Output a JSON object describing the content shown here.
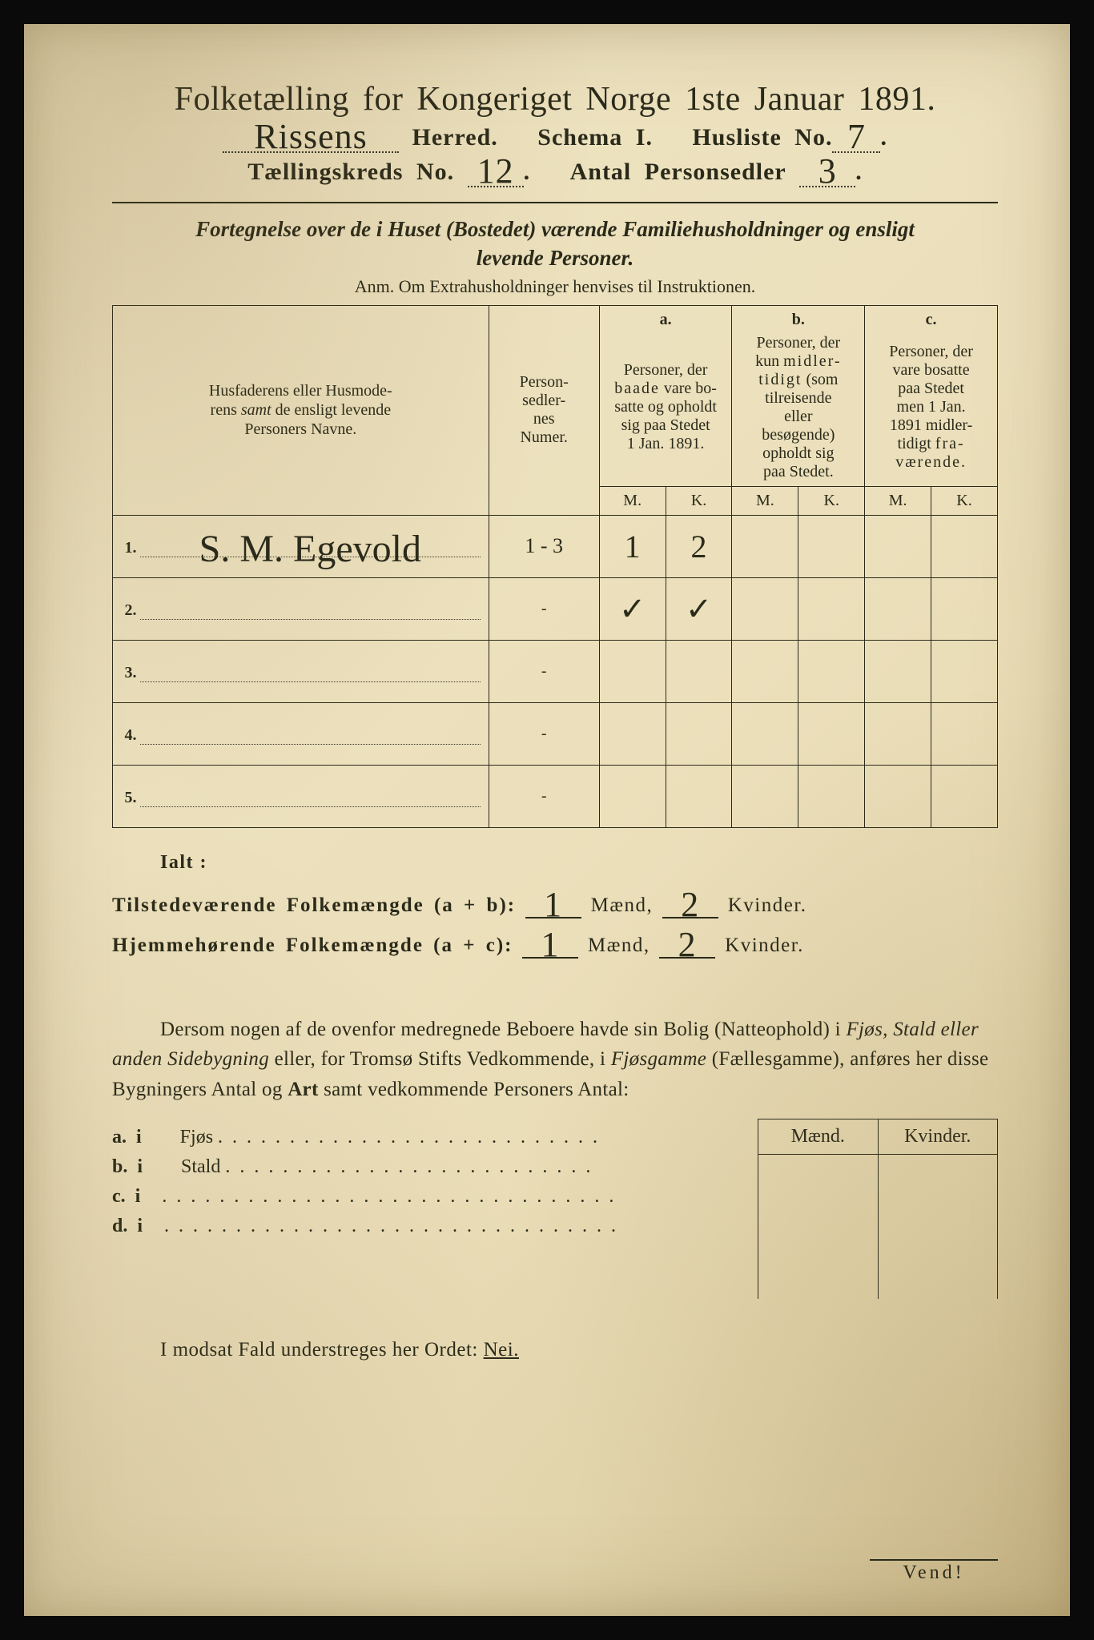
{
  "title": "Folketælling for Kongeriget Norge 1ste Januar 1891.",
  "header": {
    "herred_value": "Rissens",
    "herred_label": "Herred.",
    "schema_label": "Schema I.",
    "husliste_label": "Husliste No.",
    "husliste_value": "7",
    "kreds_label": "Tællingskreds No.",
    "kreds_value": "12",
    "antal_label": "Antal Personsedler",
    "antal_value": "3"
  },
  "subheading_line1": "Fortegnelse over de i Huset (Bostedet) værende Familiehusholdninger og ensligt",
  "subheading_line2": "levende Personer.",
  "anm": "Anm.  Om Extrahusholdninger henvises til Instruktionen.",
  "table": {
    "col_name": "Husfaderens eller Husmoderens samt de ensligt levende Personers Navne.",
    "col_num": "Person-\nsedler-\nnes\nNumer.",
    "col_a_top": "a.",
    "col_a": "Personer, der baade vare bosatte og opholdt sig paa Stedet 1 Jan. 1891.",
    "col_b_top": "b.",
    "col_b": "Personer, der kun midlertidigt (som tilreisende eller besøgende) opholdt sig paa Stedet.",
    "col_c_top": "c.",
    "col_c": "Personer, der vare bosatte paa Stedet men 1 Jan. 1891 midlertidigt fraværende.",
    "mk_m": "M.",
    "mk_k": "K.",
    "rows": [
      {
        "n": "1.",
        "name": "S. M. Egevold",
        "num": "1 - 3",
        "am": "1",
        "ak": "2",
        "bm": "",
        "bk": "",
        "cm": "",
        "ck": ""
      },
      {
        "n": "2.",
        "name": "",
        "num": "",
        "am": "✓",
        "ak": "✓",
        "bm": "",
        "bk": "",
        "cm": "",
        "ck": ""
      },
      {
        "n": "3.",
        "name": "",
        "num": "",
        "am": "",
        "ak": "",
        "bm": "",
        "bk": "",
        "cm": "",
        "ck": ""
      },
      {
        "n": "4.",
        "name": "",
        "num": "",
        "am": "",
        "ak": "",
        "bm": "",
        "bk": "",
        "cm": "",
        "ck": ""
      },
      {
        "n": "5.",
        "name": "",
        "num": "",
        "am": "",
        "ak": "",
        "bm": "",
        "bk": "",
        "cm": "",
        "ck": ""
      }
    ]
  },
  "totals": {
    "ialt": "Ialt :",
    "line1_label": "Tilstedeværende Folkemængde (a + b):",
    "line2_label": "Hjemmehørende Folkemængde (a + c):",
    "maend": "Mænd,",
    "kvinder": "Kvinder.",
    "l1_m": "1",
    "l1_k": "2",
    "l2_m": "1",
    "l2_k": "2"
  },
  "para": "Dersom nogen af de ovenfor medregnede Beboere havde sin Bolig (Natteophold) i Fjøs, Stald eller anden Sidebygning eller, for Tromsø Stifts Vedkommende, i Fjøsgamme (Fællesgamme), anføres her disse Bygningers Antal og Art samt vedkommende Personers Antal:",
  "side": {
    "a": "a.  i      Fjøs",
    "b": "b.  i      Stald",
    "c": "c.  i",
    "d": "d.  i",
    "hdr_m": "Mænd.",
    "hdr_k": "Kvinder."
  },
  "footer": "I modsat Fald understreges her Ordet:",
  "footer_nei": "Nei.",
  "vend": "Vend!",
  "colors": {
    "paper": "#ece0bc",
    "ink": "#2a2a1a",
    "border": "#0a0a0a"
  }
}
